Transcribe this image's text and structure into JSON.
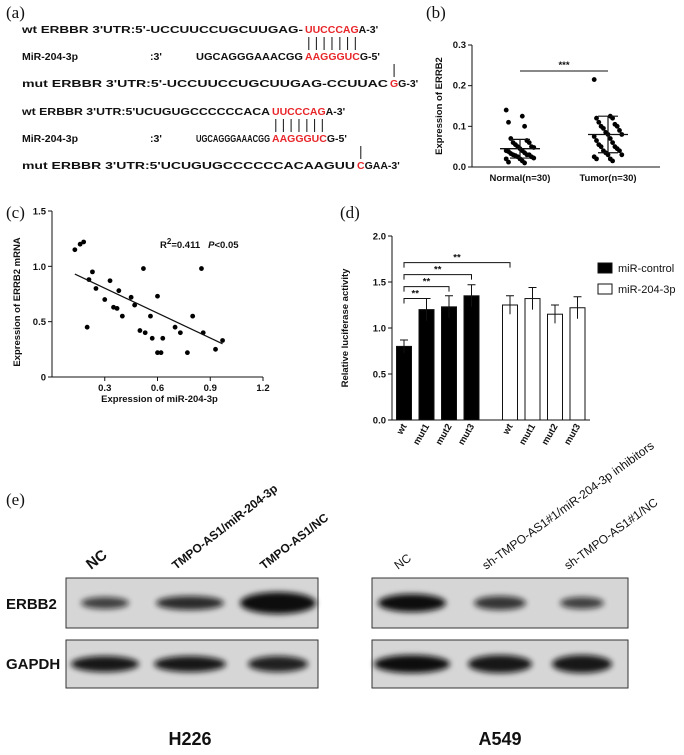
{
  "panel_a": {
    "label": "(a)",
    "match_color": "#e8262a",
    "rows": [
      {
        "label": "wt ERBBR 3'UTR:5'-UCCUUCCUGCUUGAG-",
        "match": "UUCCCAG",
        "end": "A-3'"
      },
      {
        "label": "MiR-204-3p",
        "sep": ":3'",
        "seq": "UGCAGGGAAACGG",
        "match": "AAGGGUC",
        "end": "G-5'"
      },
      {
        "label": "mut ERBBR 3'UTR:5'-UCCUUCCUGCUUGAG-CCUUAC",
        "match": "G",
        "end": "G-3'"
      },
      {
        "label": "wt ERBBR 3'UTR:5'UCUGUGCCCCCCACA",
        "match": "UUCCCAG",
        "end": "A-3'"
      },
      {
        "label": "MiR-204-3p",
        "sep": ":3'",
        "seq": "UGCAGGGAAACGG",
        "match": "AAGGGUC",
        "end": "G-5'"
      },
      {
        "label": "mut ERBBR 3'UTR:5'UCUGUGCCCCCCACAAGUU",
        "match": "C",
        "end": "GAA-3'"
      }
    ]
  },
  "chart_data": [
    {
      "type": "dot",
      "panel_label": "(b)",
      "ylabel": "Expression of ERRB2",
      "categories": [
        "Normal(n=30)",
        "Tumor(n=30)"
      ],
      "values": [
        [
          0.14,
          0.125,
          0.11,
          0.1,
          0.07,
          0.065,
          0.06,
          0.06,
          0.055,
          0.05,
          0.05,
          0.048,
          0.045,
          0.04,
          0.04,
          0.038,
          0.035,
          0.033,
          0.03,
          0.03,
          0.03,
          0.028,
          0.025,
          0.025,
          0.022,
          0.02,
          0.02,
          0.015,
          0.012,
          0.01
        ],
        [
          0.215,
          0.125,
          0.12,
          0.12,
          0.11,
          0.105,
          0.1,
          0.1,
          0.095,
          0.09,
          0.085,
          0.08,
          0.08,
          0.075,
          0.07,
          0.065,
          0.06,
          0.055,
          0.05,
          0.05,
          0.045,
          0.04,
          0.04,
          0.035,
          0.03,
          0.03,
          0.025,
          0.02,
          0.02,
          0.015
        ]
      ],
      "means": [
        0.045,
        0.08
      ],
      "sd": [
        0.023,
        0.045
      ],
      "color": "#000000",
      "ylim": [
        0,
        0.3
      ],
      "yticks": [
        {
          "value": 0,
          "label": "0.0"
        },
        0.1,
        0.2,
        0.3
      ],
      "significance": [
        {
          "label": "***",
          "between": [
            "Normal(n=30)",
            "Tumor(n=30)"
          ]
        }
      ]
    },
    {
      "type": "scatter",
      "panel_label": "(c)",
      "xlabel": "Expression of miR-204-3p",
      "ylabel": "Expression of ERRB2 mRNA",
      "x": [
        0.13,
        0.16,
        0.18,
        0.2,
        0.21,
        0.23,
        0.25,
        0.3,
        0.33,
        0.35,
        0.37,
        0.38,
        0.4,
        0.45,
        0.47,
        0.5,
        0.52,
        0.53,
        0.56,
        0.57,
        0.6,
        0.6,
        0.62,
        0.63,
        0.7,
        0.73,
        0.77,
        0.8,
        0.85,
        0.86,
        0.93,
        0.97
      ],
      "y": [
        1.15,
        1.2,
        1.22,
        0.45,
        0.88,
        0.95,
        0.8,
        0.7,
        0.87,
        0.63,
        0.62,
        0.78,
        0.55,
        0.72,
        0.65,
        0.42,
        0.98,
        0.4,
        0.55,
        0.35,
        0.73,
        0.22,
        0.22,
        0.35,
        0.45,
        0.4,
        0.22,
        0.55,
        0.98,
        0.4,
        0.25,
        0.33
      ],
      "trend_line": {
        "x": [
          0.13,
          0.97
        ],
        "y": [
          0.93,
          0.3
        ]
      },
      "color": "#000000",
      "annotation": {
        "r": "R",
        "sup": "2",
        "stat": "=0.411",
        "p": "P",
        "p_value": "<0.05"
      },
      "xlim": [
        0,
        1.2
      ],
      "xticks": [
        0.3,
        0.6,
        0.9,
        1.2
      ],
      "ylim": [
        0,
        1.5
      ],
      "yticks": [
        0,
        0.5,
        {
          "value": 1,
          "label": "1.0"
        },
        1.5
      ]
    },
    {
      "type": "bar",
      "panel_label": "(d)",
      "ylabel": "Relative luciferase activity",
      "categories": [
        "wt",
        "mut1",
        "mut2",
        "mut3"
      ],
      "series": [
        {
          "name": "miR-control",
          "color": "#000000",
          "values": [
            0.8,
            1.2,
            1.23,
            1.35
          ],
          "errors": [
            0.07,
            0.12,
            0.12,
            0.12
          ]
        },
        {
          "name": "miR-204-3p",
          "color": "#ffffff",
          "values": [
            1.25,
            1.32,
            1.15,
            1.22
          ],
          "errors": [
            0.1,
            0.12,
            0.1,
            0.12
          ]
        }
      ],
      "ylim": [
        0,
        2
      ],
      "yticks": [
        {
          "value": 0,
          "label": "0.0"
        },
        0.5,
        {
          "value": 1,
          "label": "1.0"
        },
        1.5,
        {
          "value": 2,
          "label": "2.0"
        }
      ],
      "legend": "upper right",
      "significance": [
        {
          "label": "**",
          "between": [
            [
              "miR-control",
              "wt"
            ],
            [
              "miR-control",
              "mut1"
            ]
          ]
        },
        {
          "label": "**",
          "between": [
            [
              "miR-control",
              "wt"
            ],
            [
              "miR-control",
              "mut2"
            ]
          ]
        },
        {
          "label": "**",
          "between": [
            [
              "miR-control",
              "wt"
            ],
            [
              "miR-control",
              "mut3"
            ]
          ]
        },
        {
          "label": "**",
          "between": [
            [
              "miR-control",
              "wt"
            ],
            [
              "miR-204-3p",
              "wt"
            ]
          ]
        }
      ]
    }
  ],
  "panel_e": {
    "label": "(e)",
    "rows": [
      "ERBB2",
      "GAPDH"
    ],
    "blots": [
      {
        "cell_line": "H226",
        "lanes": [
          "NC",
          "TMPO-AS1/miR-204-3p",
          "TMPO-AS1/NC"
        ]
      },
      {
        "cell_line": "A549",
        "lanes": [
          "NC",
          "sh-TMPO-AS1#1/miR-204-3p inhibitors",
          "sh-TMPO-AS1#1/NC"
        ]
      }
    ]
  }
}
